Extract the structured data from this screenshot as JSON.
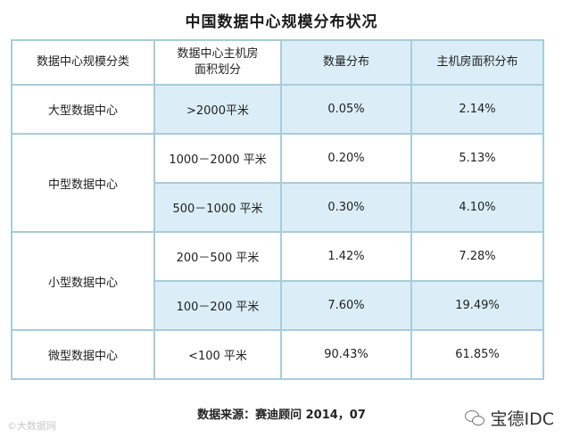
{
  "title": "中国数据中心规模分布状况",
  "table": {
    "headers": [
      "数据中心规模分类",
      "数据中心主机房面积划分",
      "数量分布",
      "主机房面积分布"
    ],
    "header_area_line1": "数据中心主机房",
    "header_area_line2": "面积划分",
    "groups": [
      {
        "category": "大型数据中心",
        "rows": [
          {
            "area": ">2000平米",
            "count_share": "0.05%",
            "area_share": "2.14%"
          }
        ]
      },
      {
        "category": "中型数据中心",
        "rows": [
          {
            "area": "1000－2000  平米",
            "count_share": "0.20%",
            "area_share": "5.13%"
          },
          {
            "area": "500－1000  平米",
            "count_share": "0.30%",
            "area_share": "4.10%"
          }
        ]
      },
      {
        "category": "小型数据中心",
        "rows": [
          {
            "area": "200－500  平米",
            "count_share": "1.42%",
            "area_share": "7.28%"
          },
          {
            "area": "100－200  平米",
            "count_share": "7.60%",
            "area_share": "19.49%"
          }
        ]
      },
      {
        "category": "微型数据中心",
        "rows": [
          {
            "area": "<100  平米",
            "count_share": "90.43%",
            "area_share": "61.85%"
          }
        ]
      }
    ]
  },
  "source": "数据来源：赛迪顾问   2014，07",
  "watermark_left": "©大数据网",
  "watermark_right": "宝德IDC",
  "colors": {
    "border": "#a8ccdb",
    "highlight": "#dbeef7"
  },
  "icons": {
    "watermark": "wechat-icon"
  }
}
